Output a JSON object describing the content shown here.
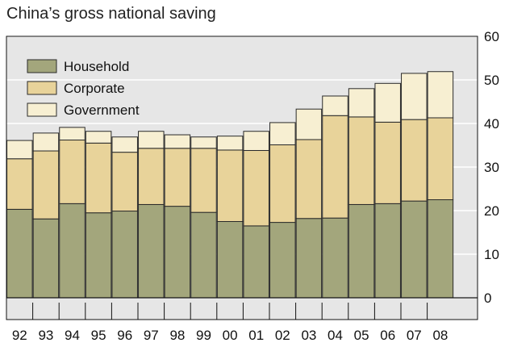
{
  "chart_data": {
    "type": "bar",
    "stacked": true,
    "title": "China’s gross national saving",
    "xlabel": "",
    "ylabel": "",
    "categories": [
      "92",
      "93",
      "94",
      "95",
      "96",
      "97",
      "98",
      "99",
      "00",
      "01",
      "02",
      "03",
      "04",
      "05",
      "06",
      "07",
      "08"
    ],
    "series": [
      {
        "name": "Household",
        "color": "#a3a67c",
        "values": [
          20.3,
          18.1,
          21.6,
          19.5,
          19.9,
          21.4,
          21.0,
          19.6,
          17.5,
          16.5,
          17.3,
          18.2,
          18.3,
          21.4,
          21.6,
          22.2,
          22.5
        ]
      },
      {
        "name": "Corporate",
        "color": "#e8d39a",
        "values": [
          11.6,
          15.6,
          14.6,
          16.0,
          13.5,
          12.9,
          13.3,
          14.7,
          16.4,
          17.3,
          17.8,
          18.1,
          23.5,
          20.1,
          18.7,
          18.7,
          18.8
        ]
      },
      {
        "name": "Government",
        "color": "#f7efd2",
        "values": [
          4.2,
          4.1,
          2.9,
          2.7,
          3.5,
          3.9,
          3.1,
          2.6,
          3.2,
          4.4,
          5.1,
          7.0,
          4.5,
          6.5,
          8.9,
          10.6,
          10.6
        ]
      }
    ],
    "ylim": [
      -5,
      60
    ],
    "yticks": [
      0,
      10,
      20,
      30,
      40,
      50,
      60
    ],
    "grid": "horizontal",
    "legend": "top-left"
  }
}
